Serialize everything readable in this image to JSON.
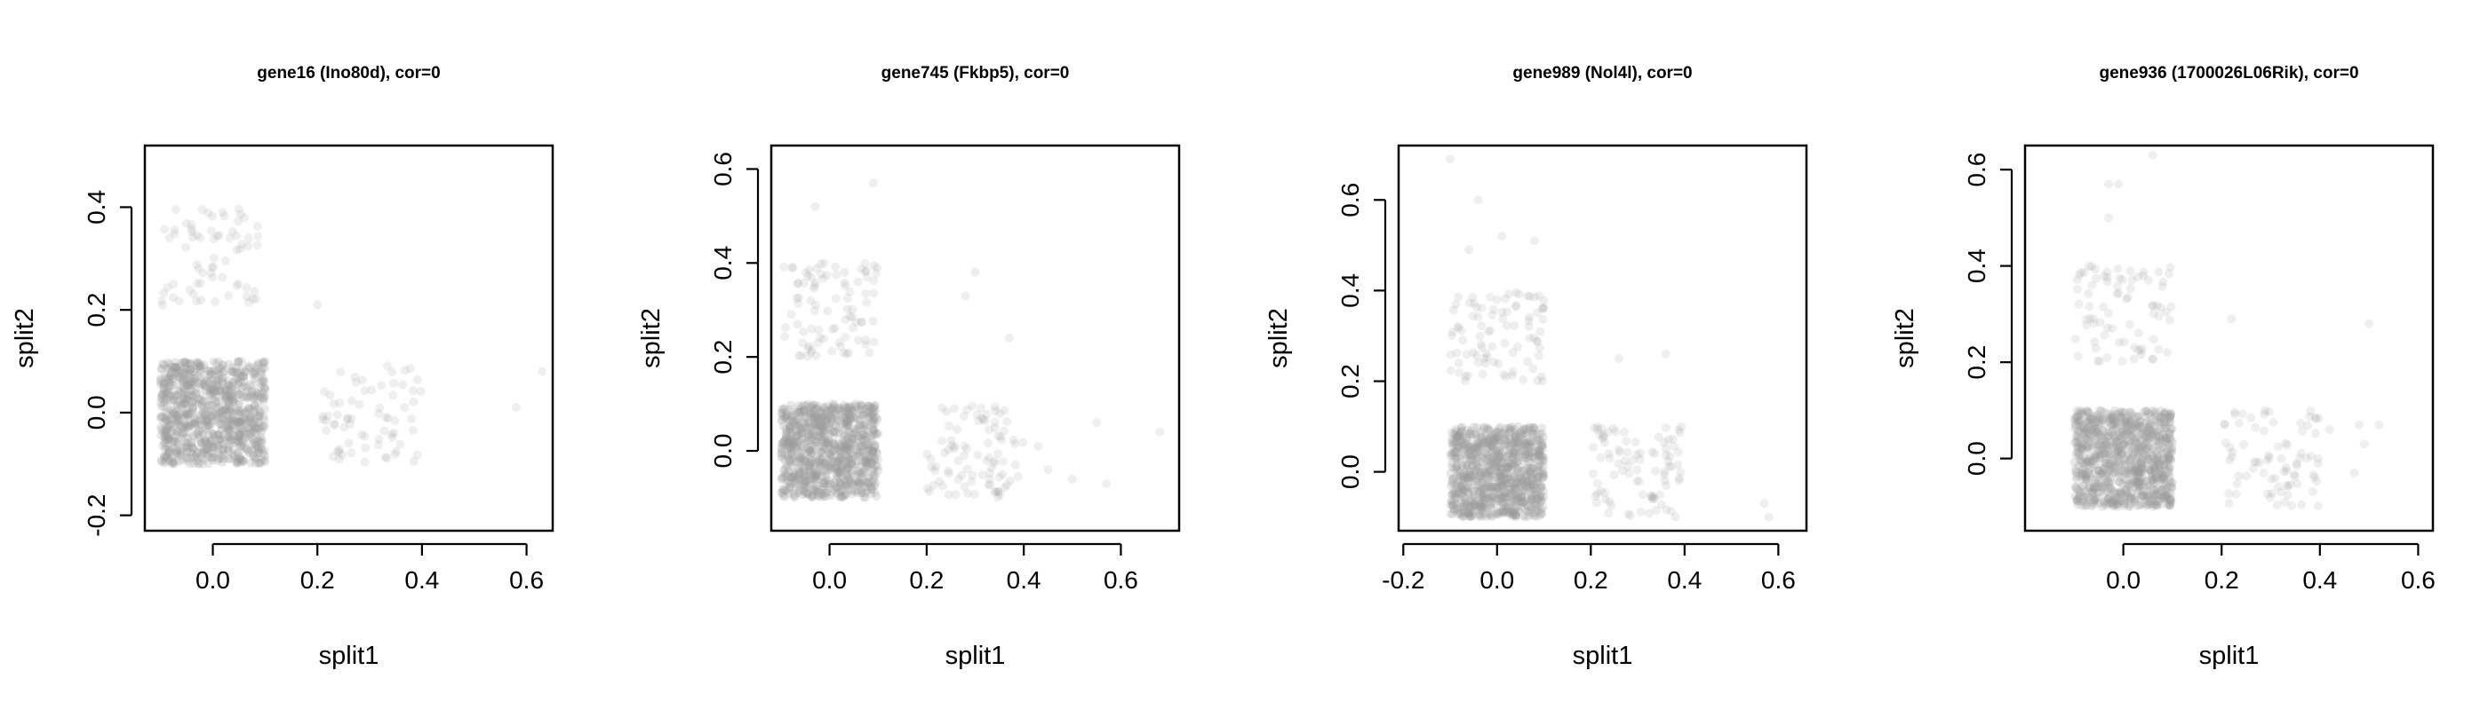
{
  "chart_data": [
    {
      "type": "scatter",
      "title": "gene16 (Ino80d), cor=0",
      "xlabel": "split1",
      "ylabel": "split2",
      "xlim": [
        -0.13,
        0.65
      ],
      "ylim": [
        -0.23,
        0.52
      ],
      "xticks": [
        "0.0",
        "0.2",
        "0.4",
        "0.6"
      ],
      "yticks": [
        "-0.2",
        "0.0",
        "0.2",
        "0.4"
      ],
      "point_color": "#9a9a9a",
      "clusters": [
        {
          "x": [
            -0.1,
            0.1
          ],
          "y": [
            -0.1,
            0.1
          ],
          "n": 900
        },
        {
          "x": [
            -0.1,
            0.09
          ],
          "y": [
            0.2,
            0.4
          ],
          "n": 70
        },
        {
          "x": [
            0.2,
            0.4
          ],
          "y": [
            -0.1,
            0.1
          ],
          "n": 70
        }
      ],
      "outliers": [
        [
          0.2,
          0.21
        ],
        [
          0.58,
          0.01
        ],
        [
          0.63,
          0.08
        ]
      ]
    },
    {
      "type": "scatter",
      "title": "gene745 (Fkbp5), cor=0",
      "xlabel": "split1",
      "ylabel": "split2",
      "xlim": [
        -0.12,
        0.72
      ],
      "ylim": [
        -0.17,
        0.65
      ],
      "xticks": [
        "0.0",
        "0.2",
        "0.4",
        "0.6"
      ],
      "yticks": [
        "0.0",
        "0.2",
        "0.4",
        "0.6"
      ],
      "point_color": "#9a9a9a",
      "clusters": [
        {
          "x": [
            -0.1,
            0.1
          ],
          "y": [
            -0.1,
            0.1
          ],
          "n": 900
        },
        {
          "x": [
            -0.1,
            0.1
          ],
          "y": [
            0.2,
            0.4
          ],
          "n": 90
        },
        {
          "x": [
            0.2,
            0.4
          ],
          "y": [
            -0.1,
            0.1
          ],
          "n": 90
        }
      ],
      "outliers": [
        [
          -0.03,
          0.52
        ],
        [
          0.09,
          0.57
        ],
        [
          0.3,
          0.38
        ],
        [
          0.28,
          0.33
        ],
        [
          0.37,
          0.24
        ],
        [
          0.5,
          -0.06
        ],
        [
          0.57,
          -0.07
        ],
        [
          0.55,
          0.06
        ],
        [
          0.68,
          0.04
        ],
        [
          0.45,
          -0.04
        ],
        [
          0.43,
          0.01
        ]
      ]
    },
    {
      "type": "scatter",
      "title": "gene989 (Nol4l), cor=0",
      "xlabel": "split1",
      "ylabel": "split2",
      "xlim": [
        -0.21,
        0.66
      ],
      "ylim": [
        -0.13,
        0.72
      ],
      "xticks": [
        "-0.2",
        "0.0",
        "0.2",
        "0.4",
        "0.6"
      ],
      "yticks": [
        "0.0",
        "0.2",
        "0.4",
        "0.6"
      ],
      "point_color": "#9a9a9a",
      "clusters": [
        {
          "x": [
            -0.1,
            0.1
          ],
          "y": [
            -0.1,
            0.1
          ],
          "n": 900
        },
        {
          "x": [
            -0.1,
            0.1
          ],
          "y": [
            0.2,
            0.4
          ],
          "n": 90
        },
        {
          "x": [
            0.2,
            0.4
          ],
          "y": [
            -0.1,
            0.1
          ],
          "n": 90
        }
      ],
      "outliers": [
        [
          -0.1,
          0.69
        ],
        [
          -0.04,
          0.6
        ],
        [
          -0.06,
          0.49
        ],
        [
          0.01,
          0.52
        ],
        [
          0.08,
          0.51
        ],
        [
          0.26,
          0.25
        ],
        [
          0.36,
          0.26
        ],
        [
          0.57,
          -0.07
        ],
        [
          0.58,
          -0.1
        ]
      ]
    },
    {
      "type": "scatter",
      "title": "gene936 (1700026L06Rik), cor=0",
      "xlabel": "split1",
      "ylabel": "split2",
      "xlim": [
        -0.2,
        0.63
      ],
      "ylim": [
        -0.15,
        0.65
      ],
      "xticks": [
        "0.0",
        "0.2",
        "0.4",
        "0.6"
      ],
      "yticks": [
        "0.0",
        "0.2",
        "0.4",
        "0.6"
      ],
      "point_color": "#9a9a9a",
      "clusters": [
        {
          "x": [
            -0.1,
            0.1
          ],
          "y": [
            -0.1,
            0.1
          ],
          "n": 900
        },
        {
          "x": [
            -0.1,
            0.1
          ],
          "y": [
            0.2,
            0.4
          ],
          "n": 80
        },
        {
          "x": [
            0.2,
            0.4
          ],
          "y": [
            -0.1,
            0.1
          ],
          "n": 80
        }
      ],
      "outliers": [
        [
          -0.03,
          0.5
        ],
        [
          -0.03,
          0.57
        ],
        [
          -0.01,
          0.57
        ],
        [
          0.06,
          0.63
        ],
        [
          0.22,
          0.29
        ],
        [
          0.48,
          0.07
        ],
        [
          0.52,
          0.07
        ],
        [
          0.47,
          -0.03
        ],
        [
          0.49,
          0.03
        ],
        [
          0.42,
          0.06
        ],
        [
          0.5,
          0.28
        ]
      ]
    }
  ]
}
